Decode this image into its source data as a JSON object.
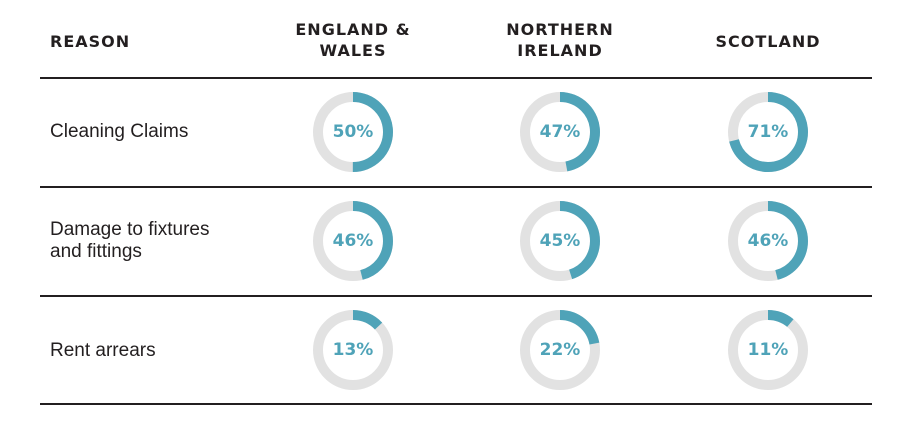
{
  "colors": {
    "accent": "#4fa3b8",
    "track": "#e2e2e2",
    "text": "#231f20"
  },
  "header": {
    "reason": "REASON",
    "col1": [
      "ENGLAND &",
      "WALES"
    ],
    "col2": [
      "NORTHERN",
      "IRELAND"
    ],
    "col3": [
      "SCOTLAND"
    ]
  },
  "chart_data": {
    "type": "table",
    "columns": [
      "ENGLAND & WALES",
      "NORTHERN IRELAND",
      "SCOTLAND"
    ],
    "rows": [
      {
        "reason": [
          "Cleaning Claims"
        ],
        "values": [
          50,
          47,
          71
        ],
        "labels": [
          "50%",
          "47%",
          "71%"
        ]
      },
      {
        "reason": [
          "Damage to fixtures",
          "and fittings"
        ],
        "values": [
          46,
          45,
          46
        ],
        "labels": [
          "46%",
          "45%",
          "46%"
        ]
      },
      {
        "reason": [
          "Rent arrears"
        ],
        "values": [
          13,
          22,
          11
        ],
        "labels": [
          "13%",
          "22%",
          "11%"
        ]
      }
    ]
  }
}
